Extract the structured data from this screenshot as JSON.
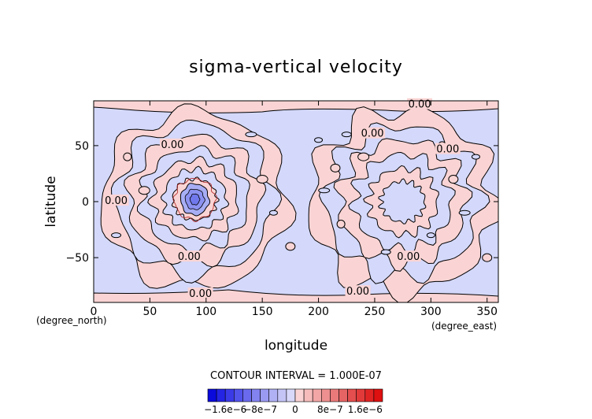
{
  "chart_data": {
    "type": "heatmap",
    "title": "sigma-vertical velocity",
    "xlabel": "longitude",
    "ylabel": "latitude",
    "x_unit_label": "(degree_east)",
    "y_unit_label": "(degree_north)",
    "xlim": [
      0,
      360
    ],
    "ylim": [
      -90,
      90
    ],
    "x_ticks": [
      0,
      50,
      100,
      150,
      200,
      250,
      300,
      350
    ],
    "y_ticks": [
      -50,
      0,
      50
    ],
    "x_tick_labels": [
      "0",
      "50",
      "100",
      "150",
      "200",
      "250",
      "300",
      "350"
    ],
    "y_tick_labels": [
      "−50",
      "0",
      "50"
    ],
    "contour_interval_text": "CONTOUR INTERVAL = 1.000E-07",
    "contour_labels": [
      {
        "text": "0.00",
        "lon": 290,
        "lat": 86
      },
      {
        "text": "0.00",
        "lon": 315,
        "lat": 46
      },
      {
        "text": "0.00",
        "lon": 248,
        "lat": 60
      },
      {
        "text": "0.00",
        "lon": 70,
        "lat": 50
      },
      {
        "text": "0.00",
        "lon": 20,
        "lat": 0
      },
      {
        "text": "0.00",
        "lon": 85,
        "lat": -50
      },
      {
        "text": "0.00",
        "lon": 280,
        "lat": -50
      },
      {
        "text": "0.00",
        "lon": 95,
        "lat": -83
      },
      {
        "text": "0.00",
        "lon": 235,
        "lat": -81
      }
    ],
    "colorbar": {
      "labels": [
        "−1.6e−6",
        "−8e−7",
        "0",
        "8e−7",
        "1.6e−6"
      ],
      "label_positions": [
        -1.6e-06,
        -8e-07,
        0,
        8e-07,
        1.6e-06
      ],
      "levels": [
        -2e-06,
        -1.8e-06,
        -1.6e-06,
        -1.4e-06,
        -1.2e-06,
        -1e-06,
        -8e-07,
        -6e-07,
        -4e-07,
        -2e-07,
        0,
        2e-07,
        4e-07,
        6e-07,
        8e-07,
        1e-06,
        1.2e-06,
        1.4e-06,
        1.6e-06,
        1.8e-06,
        2e-06
      ],
      "colors": [
        "#0a0adc",
        "#2424e4",
        "#3a3ae8",
        "#5252ec",
        "#6a6aee",
        "#8282f0",
        "#9a9af2",
        "#b0b0f4",
        "#c4c4f6",
        "#d8d8fa",
        "#fad4d4",
        "#f6bcbc",
        "#f2a6a6",
        "#ee9090",
        "#ea7a7a",
        "#e66464",
        "#e44e4e",
        "#e23a3a",
        "#e02424",
        "#de1010"
      ]
    },
    "field_colors": {
      "negative": "#d4d8fa",
      "positive": "#fad4d4",
      "contour": "#000000",
      "positive_inner_contour": "#b02020"
    },
    "grid": false,
    "legend": "colorbar-bottom"
  }
}
